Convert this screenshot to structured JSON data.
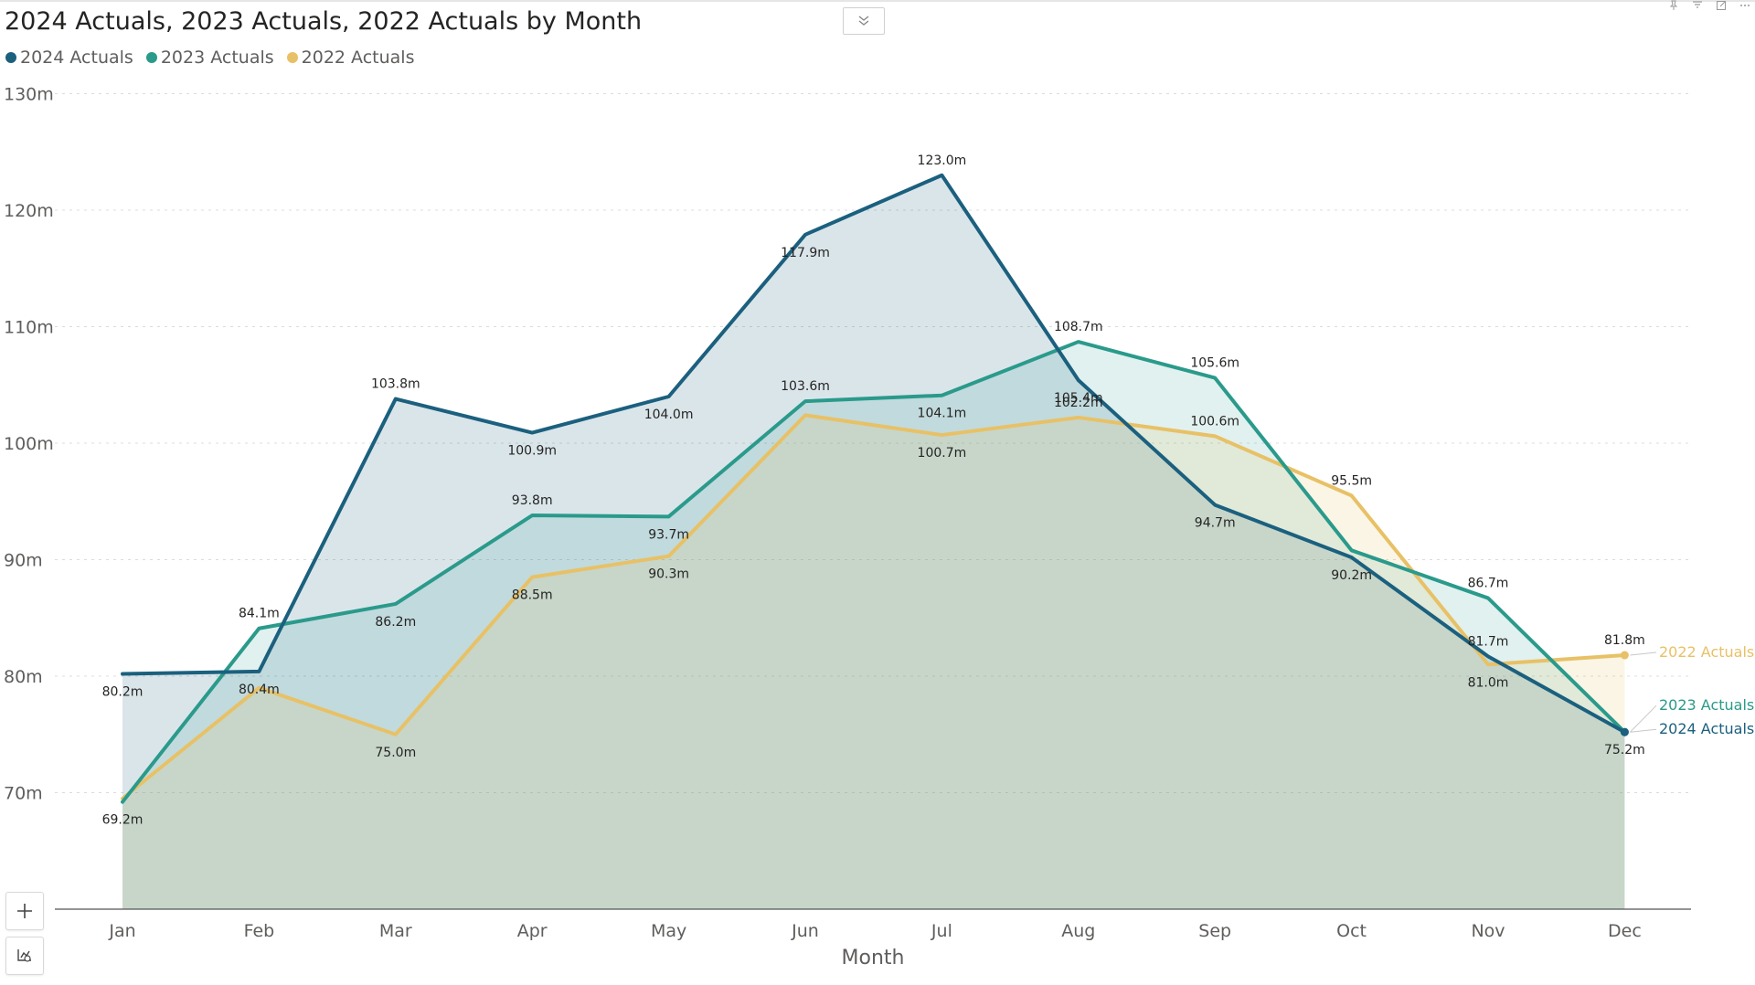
{
  "title": "2024 Actuals, 2023 Actuals, 2022 Actuals by Month",
  "header_icons": [
    "pin-icon",
    "filter-icon",
    "focus-mode-icon",
    "more-options-icon"
  ],
  "drill_button_icon": "chevron-double-down-icon",
  "side_buttons": [
    {
      "name": "zoom-in-button",
      "icon": "plus-icon"
    },
    {
      "name": "reset-view-button",
      "icon": "reset-zoom-icon"
    }
  ],
  "colors": {
    "2024": "#1b607e",
    "2023": "#2a9a8b",
    "2022": "#e8c166",
    "grid": "#dcdcdc",
    "axis_text": "#605e5c",
    "label_text": "#252423"
  },
  "chart_data": {
    "type": "area",
    "title": "2024 Actuals, 2023 Actuals, 2022 Actuals by Month",
    "xlabel": "Month",
    "ylabel": "",
    "categories": [
      "Jan",
      "Feb",
      "Mar",
      "Apr",
      "May",
      "Jun",
      "Jul",
      "Aug",
      "Sep",
      "Oct",
      "Nov",
      "Dec"
    ],
    "ylim": [
      60,
      130
    ],
    "yticks": [
      70,
      80,
      90,
      100,
      110,
      120,
      130
    ],
    "ytick_labels": [
      "70m",
      "80m",
      "90m",
      "100m",
      "110m",
      "120m",
      "130m"
    ],
    "unit_suffix": "m",
    "grid": true,
    "legend": "top-left",
    "series": [
      {
        "name": "2024 Actuals",
        "color_key": "2024",
        "values": [
          80.2,
          80.4,
          103.8,
          100.9,
          104.0,
          117.9,
          123.0,
          105.4,
          94.7,
          90.2,
          81.7,
          75.2
        ],
        "labels": [
          "80.2m",
          "80.4m",
          "103.8m",
          "100.9m",
          "104.0m",
          "117.9m",
          "123.0m",
          "105.4m",
          "94.7m",
          "90.2m",
          "81.7m",
          "75.2m"
        ],
        "end_label": "2024 Actuals"
      },
      {
        "name": "2023 Actuals",
        "color_key": "2023",
        "values": [
          69.2,
          84.1,
          86.2,
          93.8,
          93.7,
          103.6,
          104.1,
          108.7,
          105.6,
          90.8,
          86.7,
          75.2
        ],
        "labels": [
          "69.2m",
          "84.1m",
          "86.2m",
          "93.8m",
          "93.7m",
          "103.6m",
          "104.1m",
          "108.7m",
          "105.6m",
          "",
          "86.7m",
          ""
        ],
        "end_label": "2023 Actuals"
      },
      {
        "name": "2022 Actuals",
        "color_key": "2022",
        "values": [
          69.5,
          79.0,
          75.0,
          88.5,
          90.3,
          102.4,
          100.7,
          102.2,
          100.6,
          95.5,
          81.0,
          81.8
        ],
        "labels": [
          "",
          "",
          "75.0m",
          "88.5m",
          "90.3m",
          "",
          "100.7m",
          "102.2m",
          "100.6m",
          "95.5m",
          "81.0m",
          "81.8m"
        ],
        "end_label": "2022 Actuals"
      }
    ]
  }
}
